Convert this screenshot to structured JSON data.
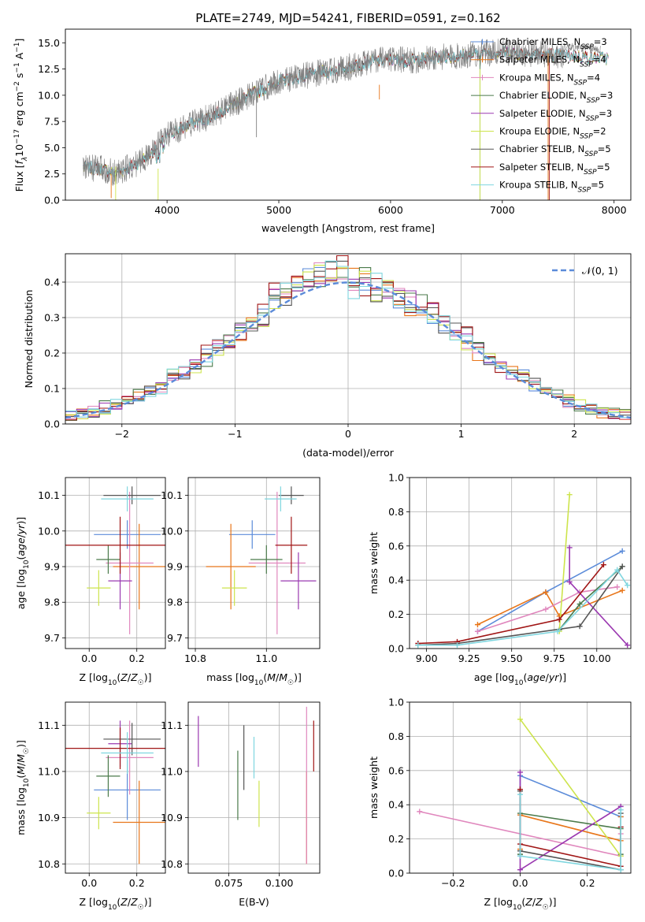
{
  "page": {
    "title": "PLATE=2749, MJD=54241, FIBERID=0591, z=0.162"
  },
  "palette": {
    "Chabrier MILES": "#5b8bd9",
    "Salpeter MILES": "#e8761a",
    "Kroupa MILES": "#e087bd",
    "Chabrier ELODIE": "#4a7a4a",
    "Salpeter ELODIE": "#9a38b0",
    "Kroupa ELODIE": "#cde44c",
    "Chabrier STELIB": "#555555",
    "Salpeter STELIB": "#a01515",
    "Kroupa STELIB": "#7fd6df",
    "data": "#808080",
    "normal": "#5b8bd9"
  },
  "chart_data": [
    {
      "id": "spectrum",
      "type": "line",
      "title": "PLATE=2749, MJD=54241, FIBERID=0591, z=0.162",
      "xlabel": "wavelength [Angstrom, rest frame]",
      "ylabel": "Flux [f_λ10^-17 erg cm^-2 s^-1 A^-1]",
      "xlim": [
        3090,
        8150
      ],
      "ylim": [
        0,
        16.3
      ],
      "xticks": [
        4000,
        5000,
        6000,
        7000,
        8000
      ],
      "yticks": [
        0.0,
        2.5,
        5.0,
        7.5,
        10.0,
        12.5,
        15.0
      ],
      "ytick_labels": [
        "0.0",
        "2.5",
        "5.0",
        "7.5",
        "10.0",
        "12.5",
        "15.0"
      ],
      "grid": false,
      "legend_position": "right",
      "continuum": {
        "x": [
          3250,
          3400,
          3550,
          3700,
          3850,
          4000,
          4200,
          4400,
          4600,
          4800,
          5000,
          5200,
          5400,
          5600,
          5800,
          6000,
          6200,
          6400,
          6600,
          6800,
          7000,
          7200,
          7400,
          7600,
          7800,
          8000
        ],
        "y": [
          3.1,
          3.0,
          2.6,
          3.3,
          4.4,
          6.2,
          7.2,
          8.0,
          9.2,
          10.3,
          11.3,
          11.8,
          12.2,
          12.6,
          13.2,
          13.4,
          13.3,
          13.6,
          13.7,
          14.0,
          14.1,
          14.0,
          13.9,
          13.8,
          13.6,
          13.5
        ]
      },
      "series": [
        {
          "name": "Chabrier MILES, N_SSP=3",
          "label": "Chabrier MILES",
          "n": "3"
        },
        {
          "name": "Salpeter MILES, N_SSP=4",
          "label": "Salpeter MILES",
          "n": "4"
        },
        {
          "name": "Kroupa MILES, N_SSP=4",
          "label": "Kroupa MILES",
          "n": "4"
        },
        {
          "name": "Chabrier ELODIE, N_SSP=3",
          "label": "Chabrier ELODIE",
          "n": "3"
        },
        {
          "name": "Salpeter ELODIE, N_SSP=3",
          "label": "Salpeter ELODIE",
          "n": "3"
        },
        {
          "name": "Kroupa ELODIE, N_SSP=2",
          "label": "Kroupa ELODIE",
          "n": "2"
        },
        {
          "name": "Chabrier STELIB, N_SSP=5",
          "label": "Chabrier STELIB",
          "n": "5"
        },
        {
          "name": "Salpeter STELIB, N_SSP=5",
          "label": "Salpeter STELIB",
          "n": "5"
        },
        {
          "name": "Kroupa STELIB, N_SSP=5",
          "label": "Kroupa STELIB",
          "n": "5"
        }
      ]
    },
    {
      "id": "residuals",
      "type": "line",
      "xlabel": "(data-model)/error",
      "ylabel": "Normed distribution",
      "xlim": [
        -2.5,
        2.5
      ],
      "ylim": [
        0,
        0.48
      ],
      "xticks": [
        -2,
        -1,
        0,
        1,
        2
      ],
      "xtick_labels": [
        "−2",
        "−1",
        "0",
        "1",
        "2"
      ],
      "yticks": [
        0.0,
        0.1,
        0.2,
        0.3,
        0.4
      ],
      "ytick_labels": [
        "0.0",
        "0.1",
        "0.2",
        "0.3",
        "0.4"
      ],
      "grid": true,
      "legend_position": "top-right",
      "legend_label": "𝒩(0, 1)",
      "bin_width": 0.1,
      "bin_start": -2.5
    },
    {
      "id": "age_vs_Z",
      "type": "scatter",
      "xlabel": "Z [log10(Z/Z☉)]",
      "ylabel": "age [log10(age/yr)]",
      "xlim": [
        -0.1,
        0.32
      ],
      "ylim": [
        9.67,
        10.15
      ],
      "xticks": [
        0.0,
        0.2
      ],
      "xtick_labels": [
        "0.0",
        "0.2"
      ],
      "yticks": [
        9.7,
        9.8,
        9.9,
        10.0,
        10.1
      ],
      "ytick_labels": [
        "9.7",
        "9.8",
        "9.9",
        "10.0",
        "10.1"
      ],
      "grid": true,
      "points": [
        {
          "series": "Chabrier MILES",
          "x": 0.16,
          "y": 9.99,
          "xerr": 0.14,
          "yerr": 0.04
        },
        {
          "series": "Salpeter MILES",
          "x": 0.21,
          "y": 9.9,
          "xerr": 0.11,
          "yerr": 0.12
        },
        {
          "series": "Kroupa MILES",
          "x": 0.17,
          "y": 9.91,
          "xerr": 0.1,
          "yerr": 0.2
        },
        {
          "series": "Chabrier ELODIE",
          "x": 0.08,
          "y": 9.92,
          "xerr": 0.05,
          "yerr": 0.04
        },
        {
          "series": "Salpeter ELODIE",
          "x": 0.13,
          "y": 9.86,
          "xerr": 0.05,
          "yerr": 0.08
        },
        {
          "series": "Kroupa ELODIE",
          "x": 0.04,
          "y": 9.84,
          "xerr": 0.05,
          "yerr": 0.05
        },
        {
          "series": "Chabrier STELIB",
          "x": 0.18,
          "y": 10.1,
          "xerr": 0.12,
          "yerr": 0.025
        },
        {
          "series": "Salpeter STELIB",
          "x": 0.13,
          "y": 9.96,
          "xerr": 0.23,
          "yerr": 0.08
        },
        {
          "series": "Kroupa STELIB",
          "x": 0.16,
          "y": 10.09,
          "xerr": 0.11,
          "yerr": 0.035
        }
      ]
    },
    {
      "id": "age_vs_mass",
      "type": "scatter",
      "xlabel": "mass [log10(M/M☉)]",
      "ylabel": "",
      "xlim": [
        10.78,
        11.15
      ],
      "ylim": [
        9.67,
        10.15
      ],
      "xticks": [
        10.8,
        11.0
      ],
      "xtick_labels": [
        "10.8",
        "11.0"
      ],
      "yticks": [
        9.7,
        9.8,
        9.9,
        10.0,
        10.1
      ],
      "ytick_labels": [
        "9.7",
        "9.8",
        "9.9",
        "10.0",
        "10.1"
      ],
      "grid": true,
      "points": [
        {
          "series": "Chabrier MILES",
          "x": 10.96,
          "y": 9.99,
          "xerr": 0.065,
          "yerr": 0.04
        },
        {
          "series": "Salpeter MILES",
          "x": 10.9,
          "y": 9.9,
          "xerr": 0.07,
          "yerr": 0.12
        },
        {
          "series": "Kroupa MILES",
          "x": 11.03,
          "y": 9.91,
          "xerr": 0.08,
          "yerr": 0.2
        },
        {
          "series": "Chabrier ELODIE",
          "x": 11.0,
          "y": 9.92,
          "xerr": 0.045,
          "yerr": 0.04
        },
        {
          "series": "Salpeter ELODIE",
          "x": 11.09,
          "y": 9.86,
          "xerr": 0.05,
          "yerr": 0.08
        },
        {
          "series": "Kroupa ELODIE",
          "x": 10.91,
          "y": 9.84,
          "xerr": 0.035,
          "yerr": 0.05
        },
        {
          "series": "Chabrier STELIB",
          "x": 11.07,
          "y": 10.1,
          "xerr": 0.035,
          "yerr": 0.025
        },
        {
          "series": "Salpeter STELIB",
          "x": 11.07,
          "y": 9.96,
          "xerr": 0.045,
          "yerr": 0.08
        },
        {
          "series": "Kroupa STELIB",
          "x": 11.04,
          "y": 10.09,
          "xerr": 0.045,
          "yerr": 0.035
        }
      ]
    },
    {
      "id": "mass_vs_Z",
      "type": "scatter",
      "xlabel": "Z [log10(Z/Z☉)]",
      "ylabel": "mass [log10(M/M☉)]",
      "xlim": [
        -0.1,
        0.32
      ],
      "ylim": [
        10.78,
        11.15
      ],
      "xticks": [
        0.0,
        0.2
      ],
      "xtick_labels": [
        "0.0",
        "0.2"
      ],
      "yticks": [
        10.8,
        10.9,
        11.0,
        11.1
      ],
      "ytick_labels": [
        "10.8",
        "10.9",
        "11.0",
        "11.1"
      ],
      "grid": true,
      "points": [
        {
          "series": "Chabrier MILES",
          "x": 0.16,
          "y": 10.96,
          "xerr": 0.14,
          "yerr": 0.065
        },
        {
          "series": "Salpeter MILES",
          "x": 0.21,
          "y": 10.89,
          "xerr": 0.11,
          "yerr": 0.09
        },
        {
          "series": "Kroupa MILES",
          "x": 0.17,
          "y": 11.03,
          "xerr": 0.1,
          "yerr": 0.08
        },
        {
          "series": "Chabrier ELODIE",
          "x": 0.08,
          "y": 10.99,
          "xerr": 0.05,
          "yerr": 0.045
        },
        {
          "series": "Salpeter ELODIE",
          "x": 0.13,
          "y": 11.06,
          "xerr": 0.05,
          "yerr": 0.05
        },
        {
          "series": "Kroupa ELODIE",
          "x": 0.04,
          "y": 10.91,
          "xerr": 0.05,
          "yerr": 0.035
        },
        {
          "series": "Chabrier STELIB",
          "x": 0.18,
          "y": 11.07,
          "xerr": 0.12,
          "yerr": 0.035
        },
        {
          "series": "Salpeter STELIB",
          "x": 0.13,
          "y": 11.05,
          "xerr": 0.23,
          "yerr": 0.045
        },
        {
          "series": "Kroupa STELIB",
          "x": 0.16,
          "y": 11.04,
          "xerr": 0.11,
          "yerr": 0.045
        }
      ]
    },
    {
      "id": "mass_vs_EBV",
      "type": "scatter",
      "xlabel": "E(B-V)",
      "ylabel": "",
      "xlim": [
        0.055,
        0.12
      ],
      "ylim": [
        10.78,
        11.15
      ],
      "xticks": [
        0.075,
        0.1
      ],
      "xtick_labels": [
        "0.075",
        "0.100"
      ],
      "yticks": [
        10.8,
        10.9,
        11.0,
        11.1
      ],
      "ytick_labels": [
        "10.8",
        "10.9",
        "11.0",
        "11.1"
      ],
      "grid": true,
      "points": [
        {
          "series": "Salpeter ELODIE",
          "x": 0.06,
          "y": 11.065,
          "yerr": 0.055
        },
        {
          "series": "Chabrier ELODIE",
          "x": 0.0795,
          "y": 10.97,
          "yerr": 0.075
        },
        {
          "series": "Chabrier STELIB",
          "x": 0.0825,
          "y": 11.03,
          "yerr": 0.07
        },
        {
          "series": "Kroupa STELIB",
          "x": 0.0875,
          "y": 11.03,
          "yerr": 0.045
        },
        {
          "series": "Kroupa ELODIE",
          "x": 0.09,
          "y": 10.93,
          "yerr": 0.05
        },
        {
          "series": "Salpeter MILES",
          "x": 0.1135,
          "y": 10.9,
          "yerr": 0.1
        },
        {
          "series": "Kroupa MILES",
          "x": 0.1135,
          "y": 10.97,
          "yerr": 0.17
        },
        {
          "series": "Salpeter STELIB",
          "x": 0.117,
          "y": 11.055,
          "yerr": 0.055
        }
      ]
    },
    {
      "id": "weight_vs_age",
      "type": "line",
      "xlabel": "age [log10(age/yr)]",
      "ylabel": "mass weight",
      "xlim": [
        8.9,
        10.2
      ],
      "ylim": [
        0,
        1.0
      ],
      "xticks": [
        9.0,
        9.25,
        9.5,
        9.75,
        10.0
      ],
      "xtick_labels": [
        "9.00",
        "9.25",
        "9.50",
        "9.75",
        "10.00"
      ],
      "yticks": [
        0.0,
        0.2,
        0.4,
        0.6,
        0.8,
        1.0
      ],
      "ytick_labels": [
        "0.0",
        "0.2",
        "0.4",
        "0.6",
        "0.8",
        "1.0"
      ],
      "grid": true,
      "series": [
        {
          "name": "Chabrier MILES",
          "x": [
            9.3,
            9.7,
            10.15
          ],
          "y": [
            0.1,
            0.33,
            0.57
          ]
        },
        {
          "name": "Salpeter MILES",
          "x": [
            9.3,
            9.7,
            9.78,
            10.15
          ],
          "y": [
            0.14,
            0.33,
            0.19,
            0.34
          ]
        },
        {
          "name": "Kroupa MILES",
          "x": [
            9.3,
            9.7,
            9.9,
            10.12
          ],
          "y": [
            0.1,
            0.23,
            0.33,
            0.36
          ]
        },
        {
          "name": "Chabrier ELODIE",
          "x": [
            9.78,
            9.9,
            10.15
          ],
          "y": [
            0.11,
            0.26,
            0.48
          ]
        },
        {
          "name": "Salpeter ELODIE",
          "x": [
            9.84,
            9.84,
            10.18
          ],
          "y": [
            0.59,
            0.39,
            0.02
          ]
        },
        {
          "name": "Kroupa ELODIE",
          "x": [
            9.78,
            9.84
          ],
          "y": [
            0.1,
            0.9
          ]
        },
        {
          "name": "Chabrier STELIB",
          "x": [
            8.95,
            9.18,
            9.9,
            10.15
          ],
          "y": [
            0.02,
            0.03,
            0.13,
            0.48
          ]
        },
        {
          "name": "Salpeter STELIB",
          "x": [
            8.95,
            9.18,
            9.78,
            10.04
          ],
          "y": [
            0.03,
            0.04,
            0.17,
            0.49
          ]
        },
        {
          "name": "Kroupa STELIB",
          "x": [
            8.95,
            9.18,
            9.77,
            10.12,
            10.18
          ],
          "y": [
            0.02,
            0.02,
            0.1,
            0.46,
            0.37
          ]
        }
      ]
    },
    {
      "id": "weight_vs_Z",
      "type": "line",
      "xlabel": "Z [log10(Z/Z☉)]",
      "ylabel": "mass weight",
      "xlim": [
        -0.33,
        0.33
      ],
      "ylim": [
        0,
        1.0
      ],
      "xticks": [
        -0.2,
        0.0,
        0.2
      ],
      "xtick_labels": [
        "−0.2",
        "0.0",
        "0.2"
      ],
      "yticks": [
        0.0,
        0.2,
        0.4,
        0.6,
        0.8,
        1.0
      ],
      "ytick_labels": [
        "0.0",
        "0.2",
        "0.4",
        "0.6",
        "0.8",
        "1.0"
      ],
      "grid": true,
      "series": [
        {
          "name": "Chabrier MILES",
          "x": [
            0.0,
            0.0,
            0.3
          ],
          "y": [
            0.1,
            0.57,
            0.33
          ]
        },
        {
          "name": "Salpeter MILES",
          "x": [
            0.0,
            0.0,
            0.3,
            0.3
          ],
          "y": [
            0.14,
            0.34,
            0.19,
            0.33
          ]
        },
        {
          "name": "Kroupa MILES",
          "x": [
            -0.3,
            0.3,
            0.3
          ],
          "y": [
            0.36,
            0.1,
            0.23
          ]
        },
        {
          "name": "Chabrier ELODIE",
          "x": [
            0.0,
            0.0,
            0.3,
            0.3
          ],
          "y": [
            0.11,
            0.35,
            0.26,
            0.11
          ]
        },
        {
          "name": "Salpeter ELODIE",
          "x": [
            0.0,
            0.0,
            0.3
          ],
          "y": [
            0.59,
            0.02,
            0.39
          ]
        },
        {
          "name": "Kroupa ELODIE",
          "x": [
            0.0,
            0.3
          ],
          "y": [
            0.9,
            0.1
          ]
        },
        {
          "name": "Chabrier STELIB",
          "x": [
            0.0,
            0.0,
            0.3,
            0.3
          ],
          "y": [
            0.48,
            0.13,
            0.02,
            0.35
          ]
        },
        {
          "name": "Salpeter STELIB",
          "x": [
            0.0,
            0.0,
            0.3,
            0.3
          ],
          "y": [
            0.49,
            0.17,
            0.04,
            0.27
          ]
        },
        {
          "name": "Kroupa STELIB",
          "x": [
            0.0,
            0.0,
            0.3,
            0.3
          ],
          "y": [
            0.46,
            0.1,
            0.02,
            0.37
          ]
        }
      ]
    }
  ]
}
